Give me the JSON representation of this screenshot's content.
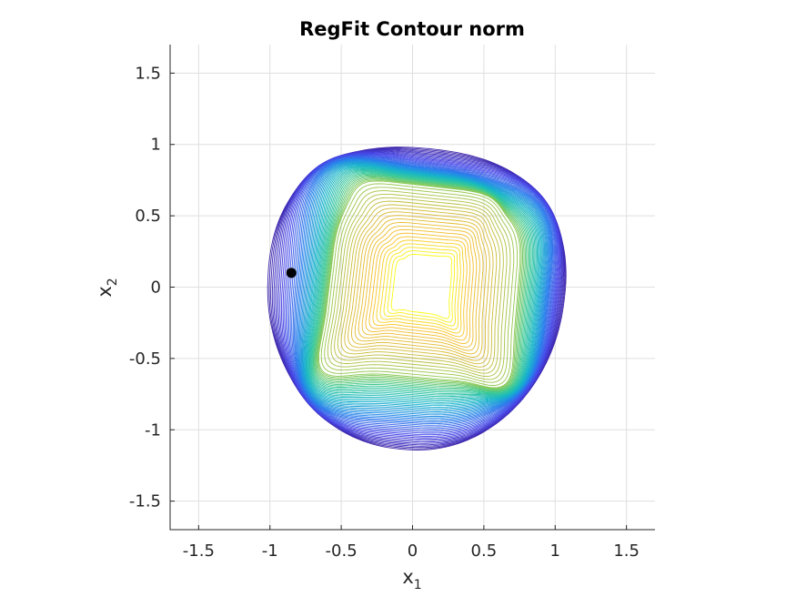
{
  "chart_data": {
    "type": "contour",
    "title": "RegFit Contour norm",
    "xlabel": {
      "base": "x",
      "sub": "1"
    },
    "ylabel": {
      "base": "x",
      "sub": "2"
    },
    "xlim": [
      -1.7,
      1.7
    ],
    "ylim": [
      -1.7,
      1.7
    ],
    "xticks": [
      -1.5,
      -1,
      -0.5,
      0,
      0.5,
      1,
      1.5
    ],
    "yticks": [
      -1.5,
      -1,
      -0.5,
      0,
      0.5,
      1,
      1.5
    ],
    "xtick_labels": [
      "-1.5",
      "-1",
      "-0.5",
      "0",
      "0.5",
      "1",
      "1.5"
    ],
    "ytick_labels": [
      "-1.5",
      "-1",
      "-0.5",
      "0",
      "0.5",
      "1",
      "1.5"
    ],
    "grid": true,
    "colormap": "parula",
    "contour_levels": 70,
    "marker_point": {
      "x": -0.85,
      "y": 0.1,
      "color": "#000000"
    }
  }
}
